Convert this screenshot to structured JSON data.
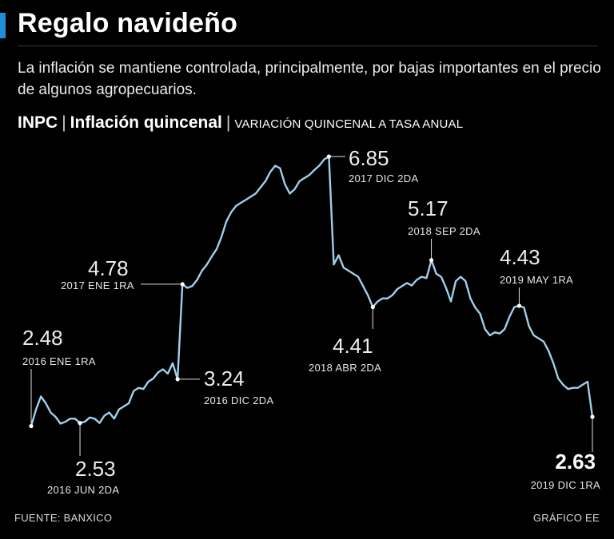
{
  "header": {
    "title": "Regalo navideño",
    "subtitle": "La inflación se mantiene controlada, principalmente, por bajas importantes en el precio de algunos agropecuarios.",
    "label_main": "INPC",
    "label_sub": "Inflación quincenal",
    "label_unit": "VARIACIÓN QUINCENAL A TASA ANUAL"
  },
  "footer": {
    "source": "FUENTE: BANXICO",
    "credit": "GRÁFICO EE"
  },
  "colors": {
    "line": "#9fd0ea",
    "accent": "#1e8fd6",
    "background": "#000000"
  },
  "chart_data": {
    "type": "line",
    "ylim": [
      2.0,
      7.3
    ],
    "grid": false,
    "legend": "none",
    "series": [
      {
        "values": [
          2.48,
          2.75,
          2.96,
          2.85,
          2.7,
          2.63,
          2.52,
          2.55,
          2.6,
          2.6,
          2.53,
          2.55,
          2.62,
          2.6,
          2.53,
          2.65,
          2.7,
          2.6,
          2.75,
          2.8,
          2.85,
          3.05,
          3.1,
          3.08,
          3.2,
          3.25,
          3.35,
          3.4,
          3.33,
          3.5,
          3.24,
          4.78,
          4.72,
          4.75,
          4.85,
          5.0,
          5.1,
          5.23,
          5.35,
          5.55,
          5.8,
          5.95,
          6.05,
          6.1,
          6.15,
          6.2,
          6.25,
          6.35,
          6.45,
          6.6,
          6.7,
          6.66,
          6.4,
          6.25,
          6.32,
          6.45,
          6.5,
          6.55,
          6.63,
          6.7,
          6.8,
          6.85,
          5.1,
          5.25,
          5.05,
          5.0,
          4.95,
          4.9,
          4.75,
          4.6,
          4.41,
          4.5,
          4.55,
          4.55,
          4.6,
          4.7,
          4.75,
          4.8,
          4.76,
          4.85,
          4.9,
          4.88,
          5.17,
          4.95,
          4.9,
          4.72,
          4.5,
          4.83,
          4.9,
          4.83,
          4.55,
          4.4,
          4.3,
          4.05,
          3.95,
          4.0,
          3.98,
          4.05,
          4.25,
          4.41,
          4.43,
          4.4,
          4.1,
          3.95,
          3.9,
          3.85,
          3.7,
          3.5,
          3.25,
          3.15,
          3.08,
          3.1,
          3.1,
          3.15,
          3.2,
          2.63
        ]
      }
    ],
    "annotations": [
      {
        "index": 0,
        "value": "2.48",
        "date": "2016 ENE 1RA"
      },
      {
        "index": 10,
        "value": "2.53",
        "date": "2016 JUN 2DA"
      },
      {
        "index": 30,
        "value": "3.24",
        "date": "2016 DIC 2DA"
      },
      {
        "index": 31,
        "value": "4.78",
        "date": "2017 ENE 1RA"
      },
      {
        "index": 61,
        "value": "6.85",
        "date": "2017 DIC 2DA"
      },
      {
        "index": 70,
        "value": "4.41",
        "date": "2018 ABR 2DA"
      },
      {
        "index": 82,
        "value": "5.17",
        "date": "2018 SEP 2DA"
      },
      {
        "index": 100,
        "value": "4.43",
        "date": "2019 MAY 1RA"
      },
      {
        "index": 115,
        "value": "2.63",
        "date": "2019 DIC 1RA",
        "bold": true
      }
    ]
  }
}
